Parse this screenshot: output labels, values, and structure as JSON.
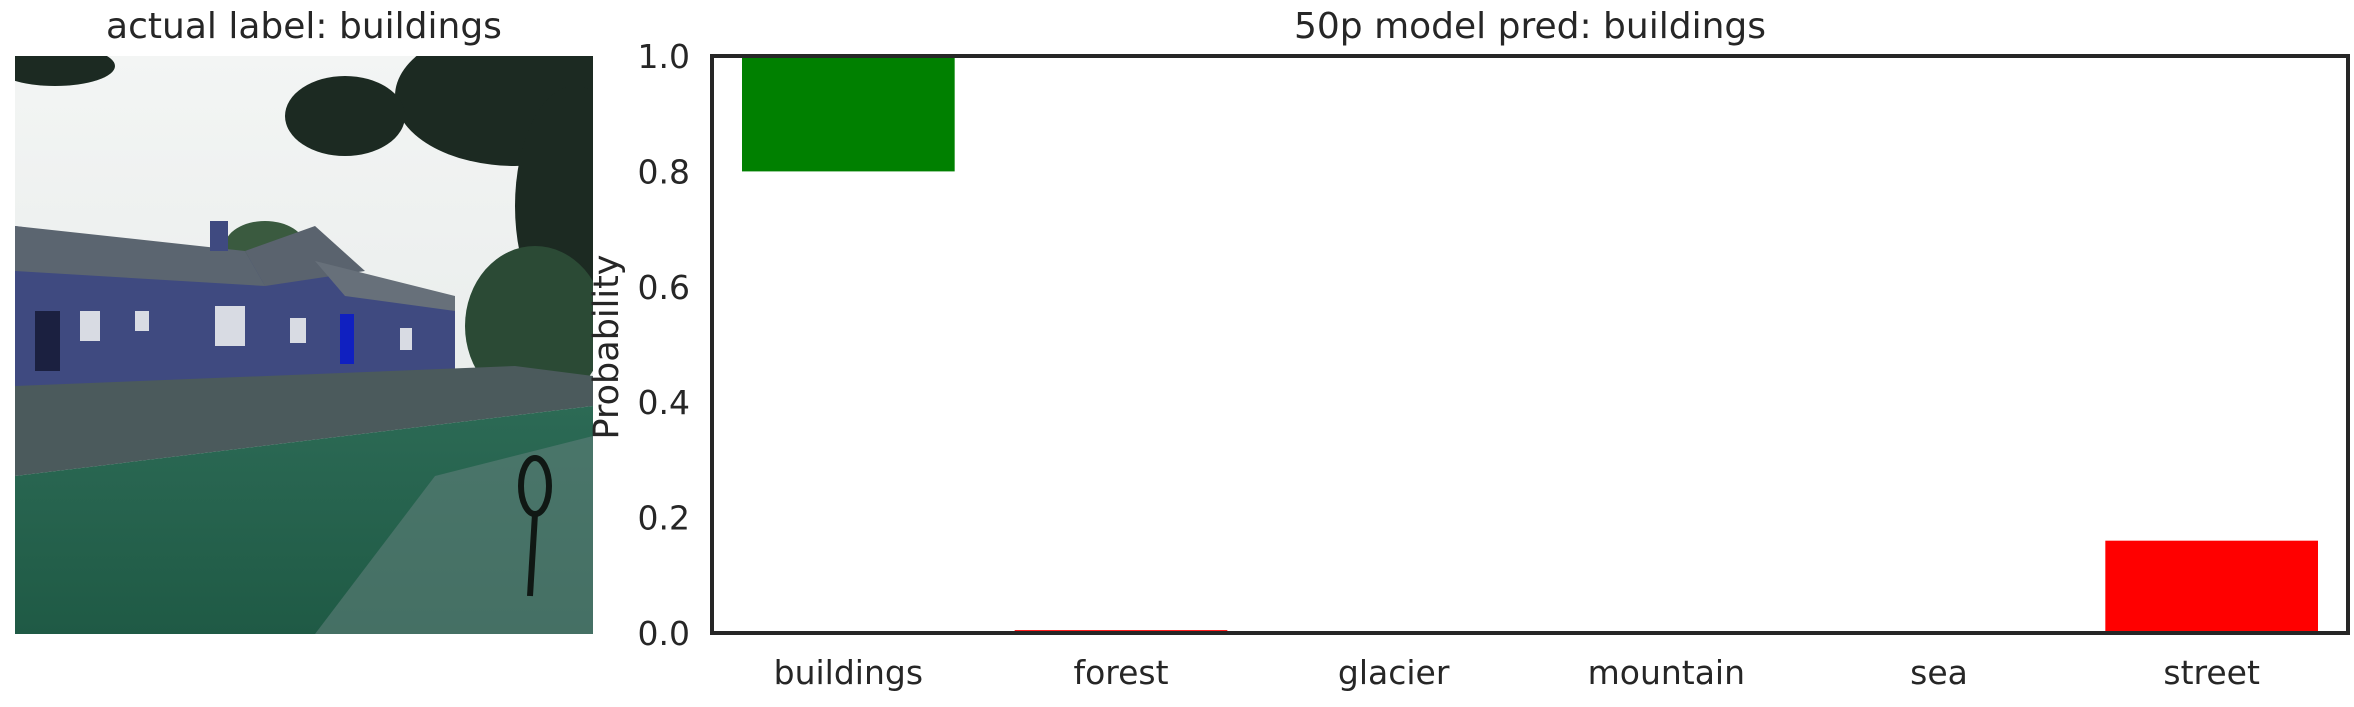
{
  "left_panel": {
    "title": "actual label: buildings",
    "image_description_icon": "photo-of-blue-cottages-on-grass"
  },
  "chart_data": {
    "type": "bar",
    "title": "50p model pred: buildings",
    "xlabel": "",
    "ylabel": "Probability",
    "categories": [
      "buildings",
      "forest",
      "glacier",
      "mountain",
      "sea",
      "street"
    ],
    "values": [
      0.8,
      0.005,
      0.0,
      0.0,
      0.0,
      0.16
    ],
    "colors": [
      "#008000",
      "#ff0000",
      "#ff0000",
      "#ff0000",
      "#ff0000",
      "#ff0000"
    ],
    "ylim": [
      0.0,
      1.0
    ],
    "yticks": [
      "0.0",
      "0.2",
      "0.4",
      "0.6",
      "0.8",
      "1.0"
    ],
    "bar_mode": "top-anchored predicted bar, others bottom-anchored",
    "grid": false
  }
}
